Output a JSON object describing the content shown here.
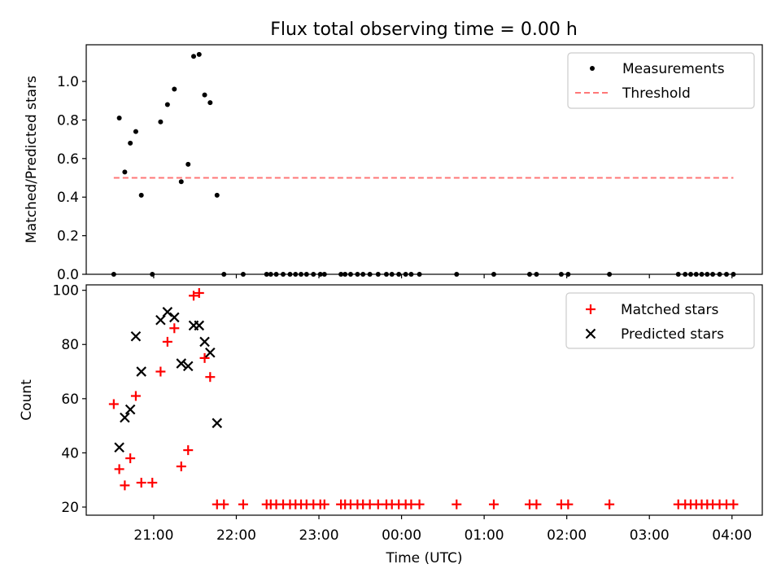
{
  "title": "Flux total observing time = 0.00 h",
  "chart_data": [
    {
      "type": "scatter",
      "ylabel": "Matched/Predicted stars",
      "ylim": [
        0,
        1.19
      ],
      "yticks": [
        0.0,
        0.2,
        0.4,
        0.6,
        0.8,
        1.0
      ],
      "ytick_labels": [
        "0.0",
        "0.2",
        "0.4",
        "0.6",
        "0.8",
        "1.0"
      ],
      "legend": {
        "placement": "top-right",
        "entries": [
          "Measurements",
          "Threshold"
        ]
      },
      "series": [
        {
          "name": "Measurements",
          "kind": "scatter",
          "color": "#000000",
          "x": [
            "20:31",
            "20:35",
            "20:39",
            "20:43",
            "20:47",
            "20:51",
            "20:59",
            "21:05",
            "21:10",
            "21:15",
            "21:20",
            "21:25",
            "21:29",
            "21:33",
            "21:37",
            "21:41",
            "21:46",
            "21:51",
            "22:05",
            "22:22",
            "22:25",
            "22:29",
            "22:34",
            "22:39",
            "22:43",
            "22:47",
            "22:51",
            "22:56",
            "23:01",
            "23:04",
            "23:16",
            "23:19",
            "23:23",
            "23:28",
            "23:32",
            "23:37",
            "23:43",
            "23:49",
            "23:53",
            "23:58",
            "24:03",
            "24:07",
            "24:13",
            "24:40",
            "25:07",
            "25:33",
            "25:38",
            "25:56",
            "26:01",
            "26:31",
            "27:21",
            "27:26",
            "27:30",
            "27:34",
            "27:38",
            "27:42",
            "27:46",
            "27:51",
            "27:56",
            "28:01"
          ],
          "y": [
            0.0,
            0.81,
            0.53,
            0.68,
            0.74,
            0.41,
            0.0,
            0.79,
            0.88,
            0.96,
            0.48,
            0.57,
            1.13,
            1.14,
            0.93,
            0.89,
            0.41,
            0.0,
            0.0,
            0.0,
            0.0,
            0.0,
            0.0,
            0.0,
            0.0,
            0.0,
            0.0,
            0.0,
            0.0,
            0.0,
            0.0,
            0.0,
            0.0,
            0.0,
            0.0,
            0.0,
            0.0,
            0.0,
            0.0,
            0.0,
            0.0,
            0.0,
            0.0,
            0.0,
            0.0,
            0.0,
            0.0,
            0.0,
            0.0,
            0.0,
            0.0,
            0.0,
            0.0,
            0.0,
            0.0,
            0.0,
            0.0,
            0.0,
            0.0,
            0.0
          ]
        },
        {
          "name": "Threshold",
          "kind": "line",
          "style": "dashed",
          "color": "#ff7777",
          "x": [
            "20:31",
            "28:01"
          ],
          "y": [
            0.5,
            0.5
          ]
        }
      ]
    },
    {
      "type": "scatter",
      "xlabel": "Time (UTC)",
      "ylabel": "Count",
      "ylim": [
        17,
        102
      ],
      "yticks": [
        20,
        40,
        60,
        80,
        100
      ],
      "ytick_labels": [
        "20",
        "40",
        "60",
        "80",
        "100"
      ],
      "xlim": [
        "20:11",
        "28:22"
      ],
      "xticks": [
        "21:00",
        "22:00",
        "23:00",
        "24:00",
        "25:00",
        "26:00",
        "27:00",
        "28:00"
      ],
      "xtick_labels": [
        "21:00",
        "22:00",
        "23:00",
        "00:00",
        "01:00",
        "02:00",
        "03:00",
        "04:00"
      ],
      "legend": {
        "placement": "top-right",
        "entries": [
          "Matched stars",
          "Predicted stars"
        ]
      },
      "series": [
        {
          "name": "Matched stars",
          "marker": "plus",
          "color": "#ff0000",
          "x": [
            "20:31",
            "20:35",
            "20:39",
            "20:43",
            "20:47",
            "20:51",
            "20:59",
            "21:05",
            "21:10",
            "21:15",
            "21:20",
            "21:25",
            "21:29",
            "21:33",
            "21:37",
            "21:41",
            "21:46",
            "21:51",
            "22:05",
            "22:22",
            "22:25",
            "22:29",
            "22:34",
            "22:39",
            "22:43",
            "22:47",
            "22:51",
            "22:56",
            "23:01",
            "23:04",
            "23:16",
            "23:19",
            "23:23",
            "23:28",
            "23:32",
            "23:37",
            "23:43",
            "23:49",
            "23:53",
            "23:58",
            "24:03",
            "24:07",
            "24:13",
            "24:40",
            "25:07",
            "25:33",
            "25:38",
            "25:56",
            "26:01",
            "26:31",
            "27:21",
            "27:26",
            "27:30",
            "27:34",
            "27:38",
            "27:42",
            "27:46",
            "27:51",
            "27:56",
            "28:01"
          ],
          "y": [
            58,
            34,
            28,
            38,
            61,
            29,
            29,
            70,
            81,
            86,
            35,
            41,
            98,
            99,
            75,
            68,
            21,
            21,
            21,
            21,
            21,
            21,
            21,
            21,
            21,
            21,
            21,
            21,
            21,
            21,
            21,
            21,
            21,
            21,
            21,
            21,
            21,
            21,
            21,
            21,
            21,
            21,
            21,
            21,
            21,
            21,
            21,
            21,
            21,
            21,
            21,
            21,
            21,
            21,
            21,
            21,
            21,
            21,
            21,
            21
          ]
        },
        {
          "name": "Predicted stars",
          "marker": "x",
          "color": "#000000",
          "x": [
            "20:35",
            "20:39",
            "20:43",
            "20:47",
            "20:51",
            "21:05",
            "21:10",
            "21:15",
            "21:20",
            "21:25",
            "21:29",
            "21:33",
            "21:37",
            "21:41",
            "21:46"
          ],
          "y": [
            42,
            53,
            56,
            83,
            70,
            89,
            92,
            90,
            73,
            72,
            87,
            87,
            81,
            77,
            51
          ]
        }
      ]
    }
  ]
}
